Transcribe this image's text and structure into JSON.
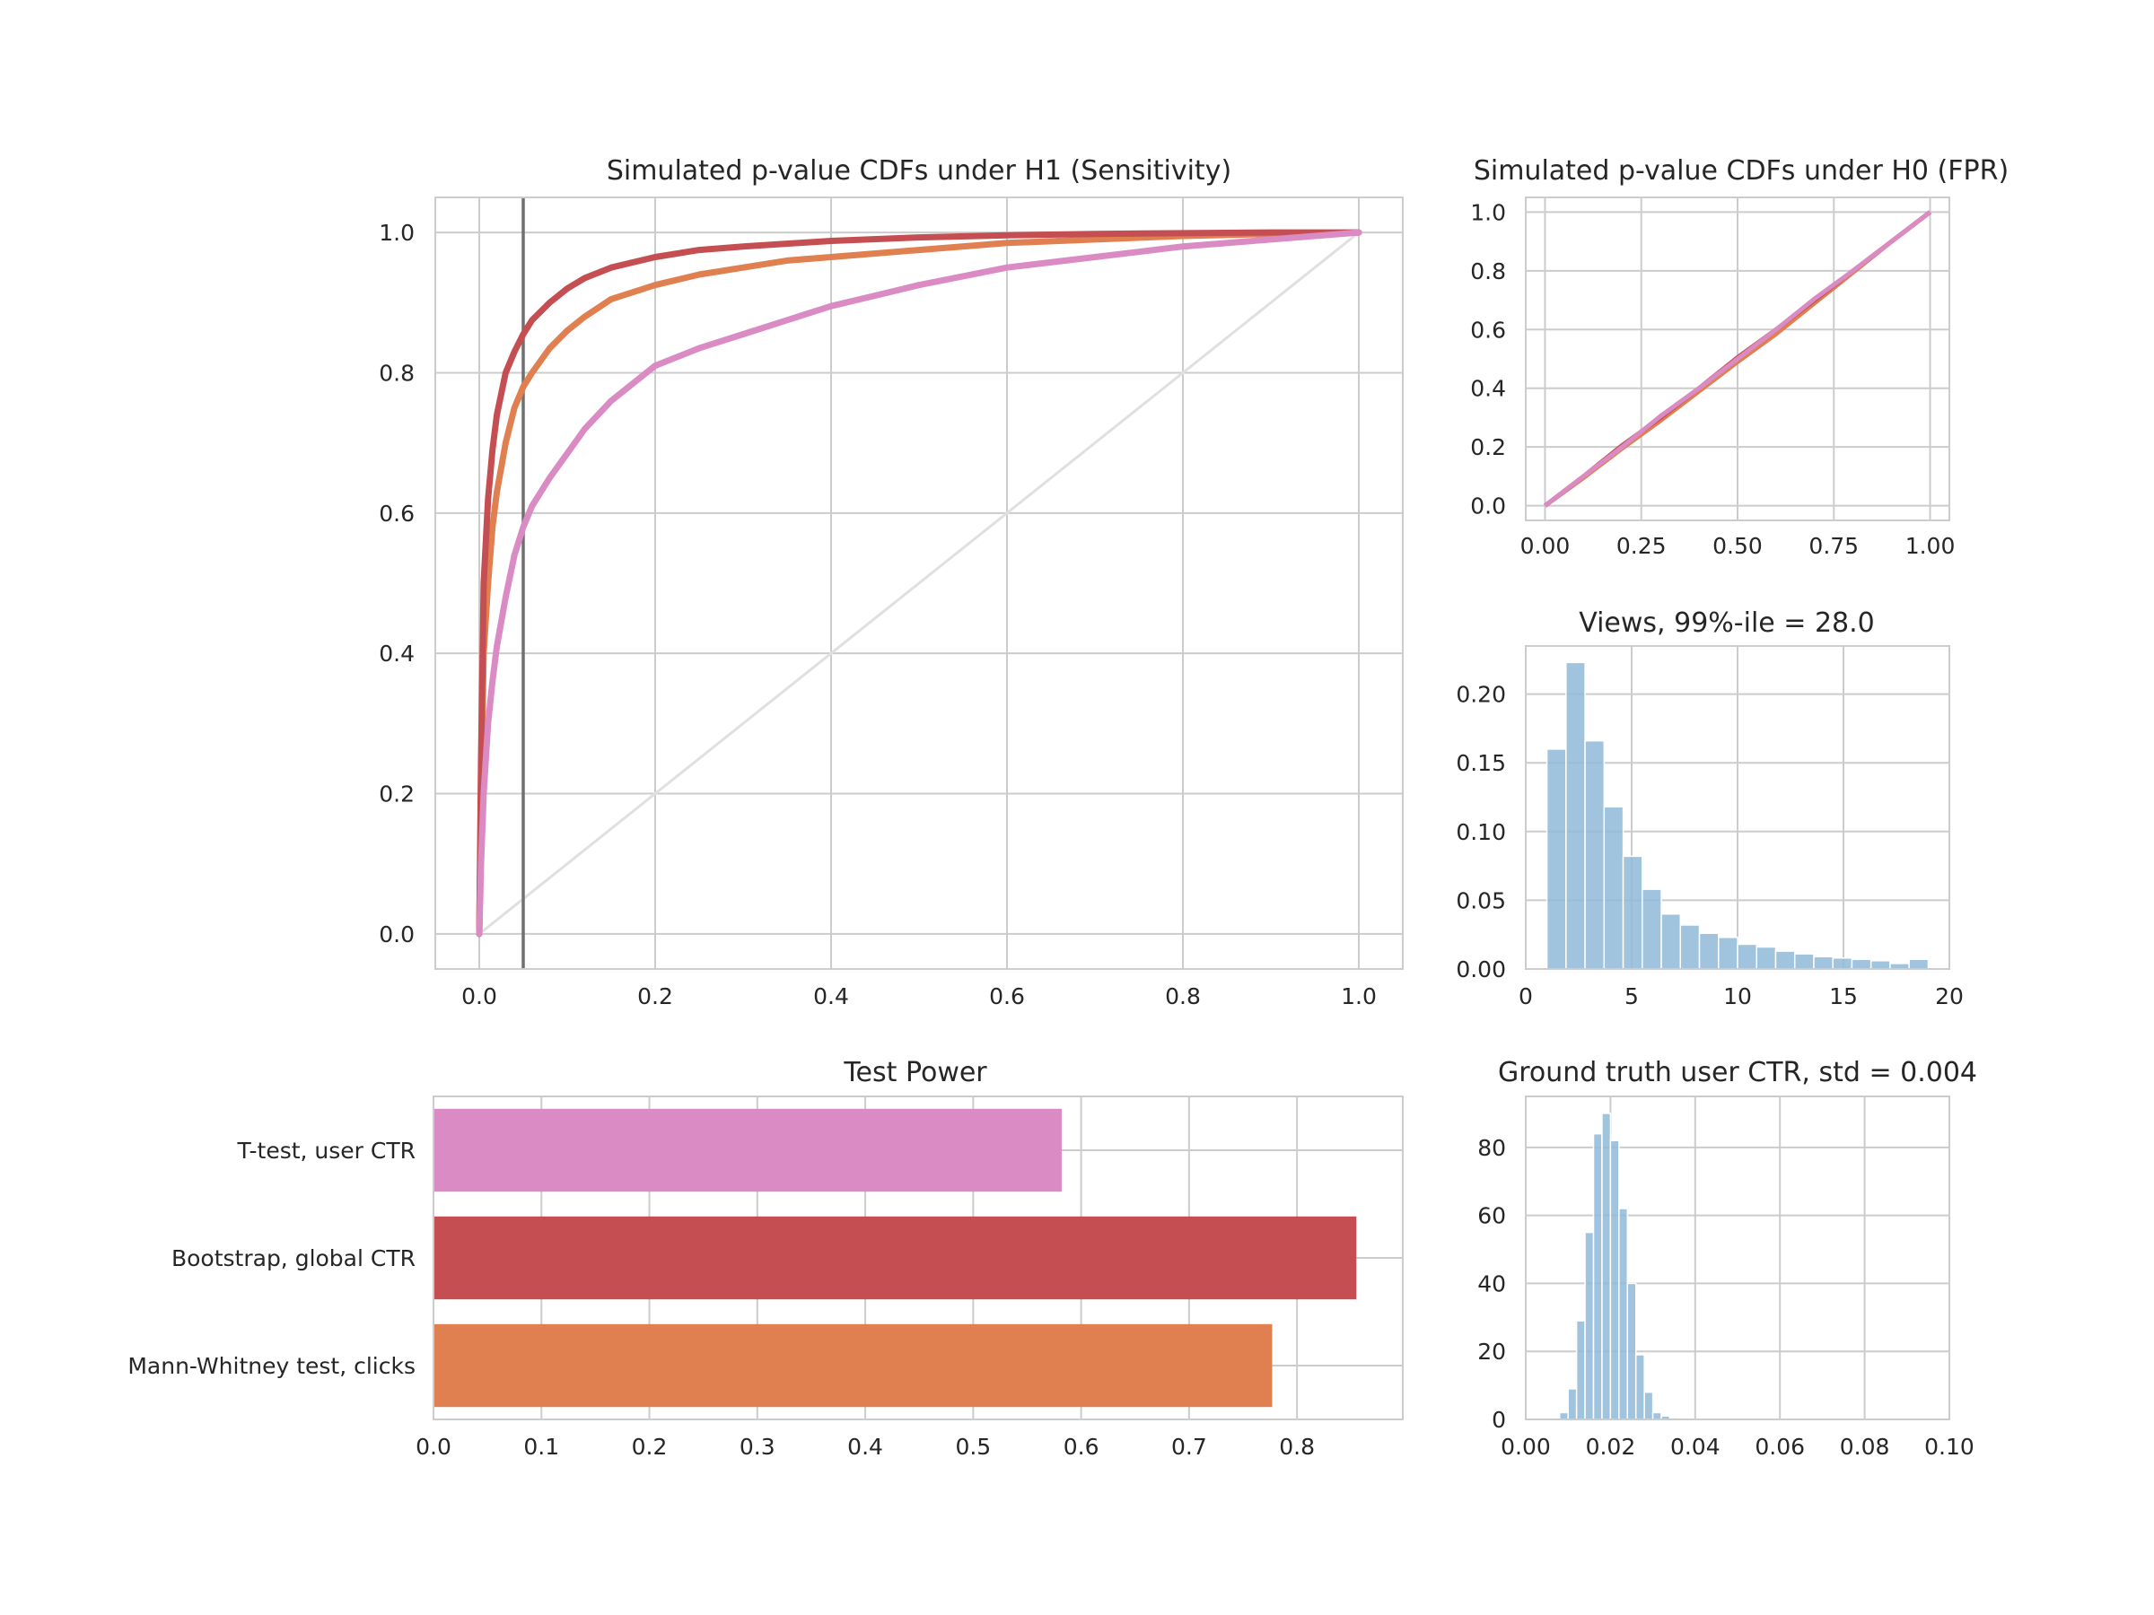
{
  "colors": {
    "mann_whitney": "#e07f4f",
    "bootstrap": "#c44e52",
    "ttest": "#da8bc3",
    "hist": "#8fb9d8",
    "diagonal": "#e0e0e0",
    "alpha_line": "#707070"
  },
  "chart_data": [
    {
      "id": "h1-cdf",
      "type": "line",
      "title": "Simulated p-value CDFs under H1 (Sensitivity)",
      "xlabel": "",
      "ylabel": "",
      "xlim": [
        -0.05,
        1.05
      ],
      "ylim": [
        -0.05,
        1.05
      ],
      "xticks": [
        "0.0",
        "0.2",
        "0.4",
        "0.6",
        "0.8",
        "1.0"
      ],
      "yticks": [
        "0.0",
        "0.2",
        "0.4",
        "0.6",
        "0.8",
        "1.0"
      ],
      "grid": true,
      "vline_x": 0.05,
      "diagonal": true,
      "series": [
        {
          "color_key": "mann_whitney",
          "x": [
            0,
            0.002,
            0.005,
            0.01,
            0.015,
            0.02,
            0.03,
            0.04,
            0.05,
            0.06,
            0.08,
            0.1,
            0.12,
            0.15,
            0.2,
            0.25,
            0.3,
            0.35,
            0.4,
            0.5,
            0.6,
            0.7,
            0.8,
            0.9,
            1.0
          ],
          "y": [
            0,
            0.2,
            0.4,
            0.5,
            0.58,
            0.63,
            0.7,
            0.75,
            0.78,
            0.8,
            0.835,
            0.86,
            0.88,
            0.905,
            0.925,
            0.94,
            0.95,
            0.96,
            0.965,
            0.975,
            0.985,
            0.99,
            0.995,
            0.998,
            1.0
          ]
        },
        {
          "color_key": "bootstrap",
          "x": [
            0,
            0.002,
            0.005,
            0.01,
            0.015,
            0.02,
            0.03,
            0.04,
            0.05,
            0.06,
            0.08,
            0.1,
            0.12,
            0.15,
            0.2,
            0.25,
            0.3,
            0.4,
            0.5,
            0.6,
            0.7,
            0.8,
            0.9,
            1.0
          ],
          "y": [
            0,
            0.25,
            0.5,
            0.62,
            0.69,
            0.74,
            0.8,
            0.83,
            0.855,
            0.875,
            0.9,
            0.92,
            0.935,
            0.95,
            0.965,
            0.975,
            0.98,
            0.988,
            0.993,
            0.996,
            0.998,
            0.999,
            1.0,
            1.0
          ]
        },
        {
          "color_key": "ttest",
          "x": [
            0,
            0.002,
            0.005,
            0.01,
            0.015,
            0.02,
            0.03,
            0.04,
            0.05,
            0.06,
            0.08,
            0.1,
            0.12,
            0.15,
            0.18,
            0.2,
            0.25,
            0.3,
            0.35,
            0.4,
            0.45,
            0.5,
            0.6,
            0.7,
            0.8,
            0.9,
            0.95,
            1.0
          ],
          "y": [
            0,
            0.1,
            0.2,
            0.3,
            0.36,
            0.41,
            0.48,
            0.54,
            0.58,
            0.61,
            0.65,
            0.685,
            0.72,
            0.76,
            0.79,
            0.81,
            0.835,
            0.855,
            0.875,
            0.895,
            0.91,
            0.925,
            0.95,
            0.965,
            0.98,
            0.99,
            0.995,
            1.0
          ]
        }
      ]
    },
    {
      "id": "h0-cdf",
      "type": "line",
      "title": "Simulated p-value CDFs under H0 (FPR)",
      "xlabel": "",
      "ylabel": "",
      "xlim": [
        -0.05,
        1.05
      ],
      "ylim": [
        -0.05,
        1.05
      ],
      "xticks": [
        "0.00",
        "0.25",
        "0.50",
        "0.75",
        "1.00"
      ],
      "yticks": [
        "0.0",
        "0.2",
        "0.4",
        "0.6",
        "0.8",
        "1.0"
      ],
      "grid": true,
      "series": [
        {
          "color_key": "mann_whitney",
          "x": [
            0,
            0.1,
            0.2,
            0.3,
            0.4,
            0.5,
            0.6,
            0.7,
            0.8,
            0.9,
            1.0
          ],
          "y": [
            0,
            0.095,
            0.195,
            0.29,
            0.39,
            0.49,
            0.585,
            0.69,
            0.795,
            0.9,
            1.0
          ]
        },
        {
          "color_key": "bootstrap",
          "x": [
            0,
            0.1,
            0.2,
            0.3,
            0.4,
            0.5,
            0.6,
            0.7,
            0.8,
            0.9,
            1.0
          ],
          "y": [
            0,
            0.1,
            0.205,
            0.3,
            0.4,
            0.505,
            0.6,
            0.7,
            0.8,
            0.9,
            1.0
          ]
        },
        {
          "color_key": "ttest",
          "x": [
            0,
            0.1,
            0.2,
            0.3,
            0.4,
            0.5,
            0.6,
            0.7,
            0.8,
            0.9,
            1.0
          ],
          "y": [
            0,
            0.1,
            0.2,
            0.305,
            0.4,
            0.5,
            0.6,
            0.705,
            0.8,
            0.9,
            1.0
          ]
        }
      ]
    },
    {
      "id": "views-hist",
      "type": "bar",
      "title": "Views, 99%-ile = 28.0",
      "xlabel": "",
      "ylabel": "",
      "xlim": [
        0,
        20
      ],
      "ylim": [
        0,
        0.235
      ],
      "xticks": [
        "0",
        "5",
        "10",
        "15",
        "20"
      ],
      "yticks": [
        "0.00",
        "0.05",
        "0.10",
        "0.15",
        "0.20"
      ],
      "grid": true,
      "bin_edges": [
        1,
        1.9,
        2.8,
        3.7,
        4.6,
        5.5,
        6.4,
        7.3,
        8.2,
        9.1,
        10,
        10.9,
        11.8,
        12.7,
        13.6,
        14.5,
        15.4,
        16.3,
        17.2,
        18.1,
        19
      ],
      "values": [
        0.16,
        0.223,
        0.166,
        0.118,
        0.082,
        0.058,
        0.04,
        0.032,
        0.026,
        0.023,
        0.018,
        0.016,
        0.013,
        0.011,
        0.009,
        0.008,
        0.007,
        0.006,
        0.004,
        0.007
      ]
    },
    {
      "id": "power-bars",
      "type": "bar",
      "orientation": "horizontal",
      "title": "Test Power",
      "xlabel": "",
      "ylabel": "",
      "xlim": [
        0,
        0.898
      ],
      "xticks": [
        "0.0",
        "0.1",
        "0.2",
        "0.3",
        "0.4",
        "0.5",
        "0.6",
        "0.7",
        "0.8"
      ],
      "grid": true,
      "categories": [
        "T-test, user CTR",
        "Bootstrap, global CTR",
        "Mann-Whitney test, clicks"
      ],
      "values": [
        0.582,
        0.855,
        0.777
      ],
      "bar_color_keys": [
        "ttest",
        "bootstrap",
        "mann_whitney"
      ]
    },
    {
      "id": "ctr-hist",
      "type": "bar",
      "title": "Ground truth user CTR, std = 0.004",
      "xlabel": "",
      "ylabel": "",
      "xlim": [
        0,
        0.1
      ],
      "ylim": [
        0,
        95
      ],
      "xticks": [
        "0.00",
        "0.02",
        "0.04",
        "0.06",
        "0.08",
        "0.10"
      ],
      "yticks": [
        "0",
        "20",
        "40",
        "60",
        "80"
      ],
      "grid": true,
      "bin_edges": [
        0.008,
        0.01,
        0.012,
        0.014,
        0.016,
        0.018,
        0.02,
        0.022,
        0.024,
        0.026,
        0.028,
        0.03,
        0.032,
        0.034,
        0.036
      ],
      "values": [
        2,
        9,
        29,
        55,
        84,
        90,
        82,
        62,
        40,
        19,
        8,
        2,
        1,
        0.5
      ]
    }
  ]
}
